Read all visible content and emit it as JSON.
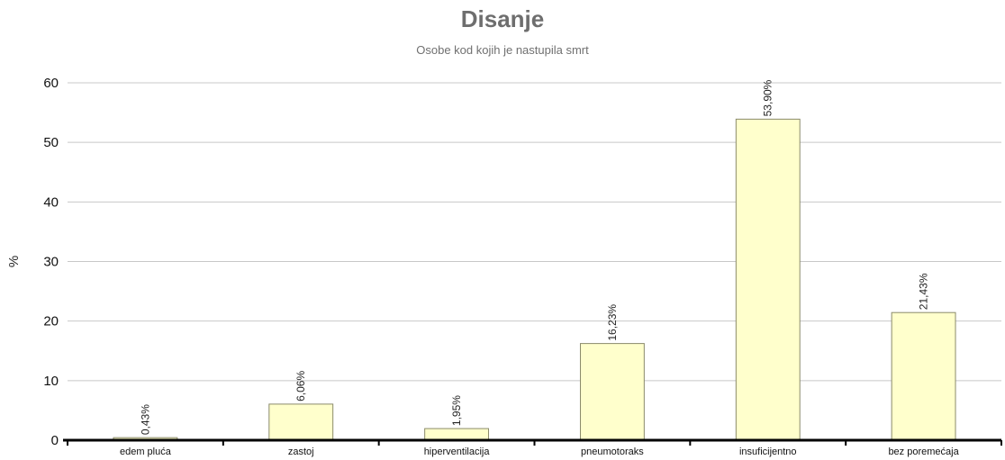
{
  "chart_data": {
    "type": "bar",
    "title": "Disanje",
    "subtitle": "Osobe kod kojih je nastupila smrt",
    "xlabel": "",
    "ylabel": "%",
    "ylim": [
      0,
      60
    ],
    "yticks": [
      0,
      10,
      20,
      30,
      40,
      50,
      60
    ],
    "grid": true,
    "legend": "none",
    "categories": [
      "edem pluća",
      "zastoj",
      "hiperventilacija",
      "pneumotoraks",
      "insuficijentno",
      "bez poremećaja"
    ],
    "values": [
      0.43,
      6.06,
      1.95,
      16.23,
      53.9,
      21.43
    ],
    "data_labels": [
      "0,43%",
      "6,06%",
      "1,95%",
      "16,23%",
      "53,90%",
      "21,43%"
    ],
    "colors": {
      "bar_fill": "#ffffcc",
      "bar_stroke": "#8a8a6a",
      "grid": "#c8c8c8",
      "axis": "#000000"
    }
  }
}
